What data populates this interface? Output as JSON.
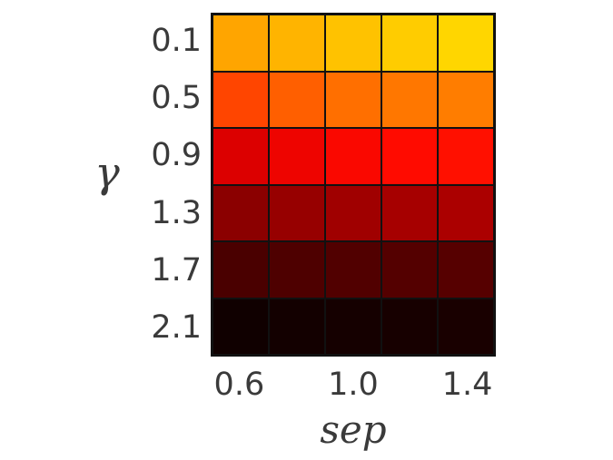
{
  "figure": {
    "background": "#ffffff",
    "text_color": "#3a3a3a",
    "grid_line_color": "#111111"
  },
  "chart_data": {
    "type": "heatmap",
    "title": "",
    "xlabel": "sep",
    "ylabel": "γ",
    "n_cols": 5,
    "n_rows": 6,
    "x_tick_labels": [
      "0.6",
      "1.0",
      "1.4"
    ],
    "x_tick_positions": [
      0.1,
      0.5,
      0.9
    ],
    "y_tick_labels": [
      "0.1",
      "0.5",
      "0.9",
      "1.3",
      "1.7",
      "2.1"
    ],
    "colormap": "hot (bright yellow top-right to near-black bottom)",
    "legend": "none",
    "grid": "cell borders only",
    "cell_colors": [
      [
        "#FFA500",
        "#FFB400",
        "#FFC200",
        "#FFCC00",
        "#FFD600"
      ],
      [
        "#FF4500",
        "#FF5F00",
        "#FF6F00",
        "#FF7700",
        "#FF7D00"
      ],
      [
        "#DC0000",
        "#EE0400",
        "#FA0800",
        "#FF0B00",
        "#FF1000"
      ],
      [
        "#8B0000",
        "#970000",
        "#A00000",
        "#A60000",
        "#AB0000"
      ],
      [
        "#4A0000",
        "#4E0000",
        "#510000",
        "#540000",
        "#560000"
      ],
      [
        "#100000",
        "#130000",
        "#150000",
        "#170000",
        "#190000"
      ]
    ]
  }
}
